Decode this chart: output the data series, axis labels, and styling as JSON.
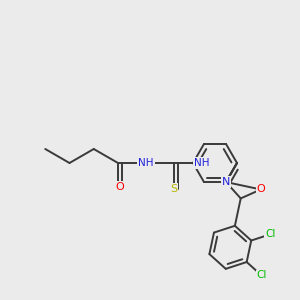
{
  "bg": "#ebebeb",
  "bond_color": "#3a3a3a",
  "colors": {
    "O": "#ff0000",
    "N": "#2020dd",
    "S": "#b8b800",
    "Cl": "#00bb00",
    "C": "#3a3a3a"
  },
  "lw": 1.4,
  "fs": 7.5
}
